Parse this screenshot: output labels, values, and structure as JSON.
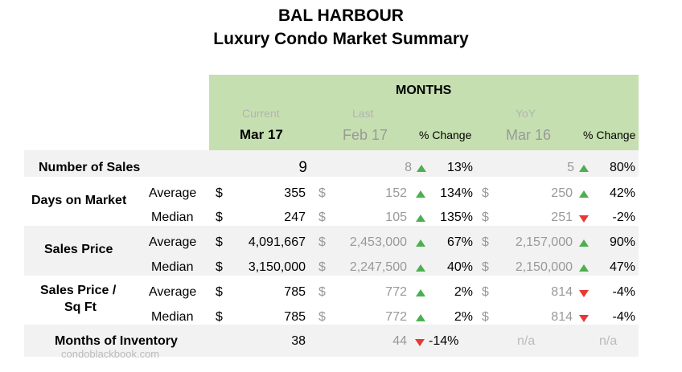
{
  "title": "BAL HARBOUR",
  "subtitle": "Luxury Condo Market Summary",
  "header": {
    "months": "MONTHS",
    "current_label": "Current",
    "current_period": "Mar 17",
    "last_label": "Last",
    "last_period": "Feb 17",
    "pct_change": "% Change",
    "yoy_label": "YoY",
    "yoy_period": "Mar 16"
  },
  "currency": "$",
  "rows": [
    {
      "group": "Number of Sales",
      "sub": "",
      "current": "9",
      "last": "8",
      "last_change": "13%",
      "last_trend": "up",
      "yoy": "5",
      "yoy_change": "80%",
      "yoy_trend": "up"
    },
    {
      "group": "Days on Market",
      "sub": "Average",
      "current": "355",
      "last": "152",
      "last_change": "134%",
      "last_trend": "up",
      "yoy": "250",
      "yoy_change": "42%",
      "yoy_trend": "up"
    },
    {
      "group": "",
      "sub": "Median",
      "current": "247",
      "last": "105",
      "last_change": "135%",
      "last_trend": "up",
      "yoy": "251",
      "yoy_change": "-2%",
      "yoy_trend": "down"
    },
    {
      "group": "Sales Price",
      "sub": "Average",
      "current": "4,091,667",
      "last": "2,453,000",
      "last_change": "67%",
      "last_trend": "up",
      "yoy": "2,157,000",
      "yoy_change": "90%",
      "yoy_trend": "up"
    },
    {
      "group": "",
      "sub": "Median",
      "current": "3,150,000",
      "last": "2,247,500",
      "last_change": "40%",
      "last_trend": "up",
      "yoy": "2,150,000",
      "yoy_change": "47%",
      "yoy_trend": "up"
    },
    {
      "group": "Sales Price /",
      "sub": "Average",
      "current": "785",
      "last": "772",
      "last_change": "2%",
      "last_trend": "up",
      "yoy": "814",
      "yoy_change": "-4%",
      "yoy_trend": "down"
    },
    {
      "group": "Sq Ft",
      "sub": "Median",
      "current": "785",
      "last": "772",
      "last_change": "2%",
      "last_trend": "up",
      "yoy": "814",
      "yoy_change": "-4%",
      "yoy_trend": "down"
    },
    {
      "group": "Months of Inventory",
      "sub": "",
      "current": "38",
      "last": "44",
      "last_change": "-14%",
      "last_trend": "down",
      "yoy": "n/a",
      "yoy_change": "n/a",
      "yoy_trend": ""
    }
  ],
  "watermark": "condoblackbook.com",
  "colors": {
    "header_bg": "#c6dfb1",
    "band_bg": "#f2f2f2",
    "up": "#4caf50",
    "down": "#e53935"
  }
}
